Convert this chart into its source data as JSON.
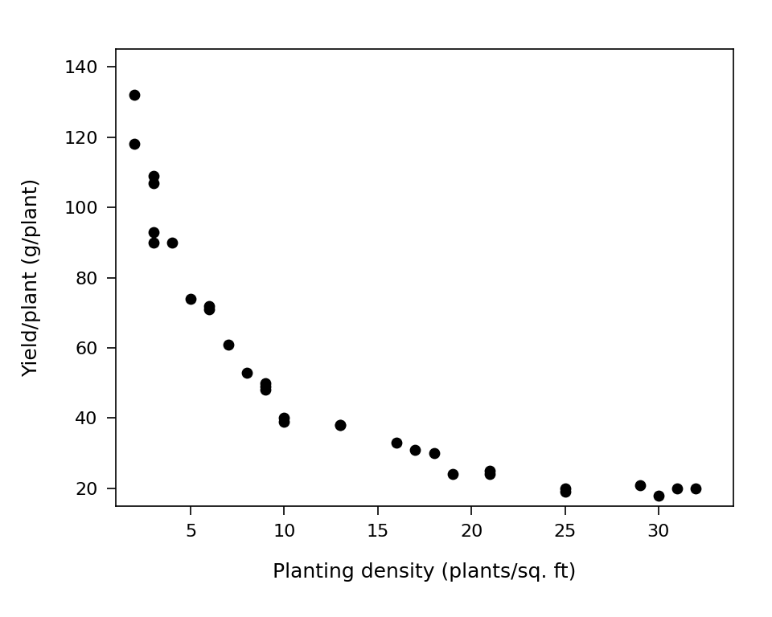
{
  "x": [
    2,
    2,
    3,
    3,
    3,
    3,
    4,
    5,
    6,
    6,
    7,
    8,
    9,
    9,
    9,
    10,
    10,
    13,
    13,
    16,
    17,
    18,
    19,
    21,
    21,
    25,
    25,
    29,
    30,
    31,
    32
  ],
  "y": [
    132,
    118,
    109,
    107,
    90,
    93,
    90,
    74,
    72,
    71,
    61,
    53,
    50,
    49,
    48,
    40,
    39,
    38,
    38,
    33,
    31,
    30,
    24,
    25,
    24,
    20,
    19,
    21,
    18,
    20,
    20
  ],
  "xlabel": "Planting density (plants/sq. ft)",
  "ylabel": "Yield/plant (g/plant)",
  "xlim": [
    1,
    34
  ],
  "ylim": [
    15,
    145
  ],
  "xticks": [
    5,
    10,
    15,
    20,
    25,
    30
  ],
  "yticks": [
    20,
    40,
    60,
    80,
    100,
    120,
    140
  ],
  "marker_color": "black",
  "marker_size": 80,
  "background_color": "white",
  "figsize": [
    9.6,
    7.68
  ],
  "dpi": 100,
  "xlabel_fontsize": 18,
  "ylabel_fontsize": 18,
  "tick_labelsize": 16
}
